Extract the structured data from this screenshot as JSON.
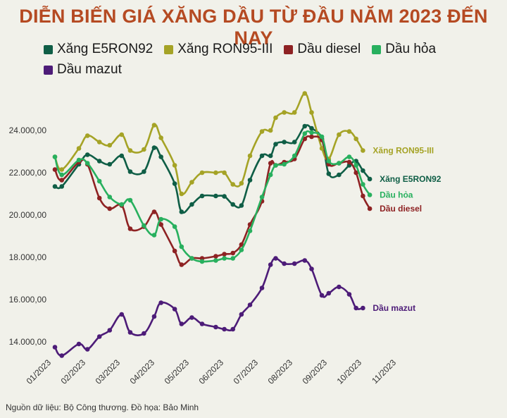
{
  "header": {
    "title": "DIỄN BIẾN GIÁ XĂNG DẦU TỪ ĐẦU NĂM 2023 ĐẾN NAY"
  },
  "footer": {
    "source": "Nguồn dữ liệu: Bộ Công thương. Đồ họa: Bảo Minh"
  },
  "chart_data": {
    "type": "line",
    "title": "DIỄN BIẾN GIÁ XĂNG DẦU TỪ ĐẦU NĂM 2023 ĐẾN NAY",
    "xlabel": "",
    "ylabel": "",
    "x_tick_labels": [
      "01/2023",
      "02/2023",
      "03/2023",
      "04/2023",
      "05/2023",
      "06/2023",
      "07/2023",
      "08/2023",
      "09/2023",
      "10/2023",
      "11/2023"
    ],
    "y_ticks": [
      "14.000,00",
      "16.000,00",
      "18.000,00",
      "20.000,00",
      "22.000,00",
      "24.000,00"
    ],
    "ylim": [
      13000,
      26000
    ],
    "grid": false,
    "legend_position": "top",
    "x": [
      0.0,
      0.2,
      0.7,
      0.95,
      1.3,
      1.6,
      1.95,
      2.2,
      2.6,
      2.9,
      3.1,
      3.5,
      3.7,
      4.0,
      4.3,
      4.7,
      4.95,
      5.2,
      5.45,
      5.7,
      6.05,
      6.3,
      6.45,
      6.7,
      7.0,
      7.3,
      7.5,
      7.8,
      8.0,
      8.3,
      8.6,
      8.8,
      9.0,
      9.2,
      9.5,
      9.7,
      9.9,
      10.2,
      10.45,
      10.75
    ],
    "series": [
      {
        "name": "Xăng E5RON92",
        "color": "#0f5e46",
        "end_label": "Xăng E5RON92",
        "values": [
          21350,
          21350,
          22400,
          22850,
          22550,
          22400,
          22800,
          22050,
          22050,
          23180,
          22750,
          21480,
          20150,
          20500,
          20900,
          20900,
          20880,
          20500,
          20450,
          21650,
          22800,
          22800,
          23350,
          23450,
          23450,
          24200,
          24100,
          23600,
          21950,
          21900,
          22350,
          22550,
          22100,
          21700,
          null,
          null,
          null,
          null,
          null,
          null
        ]
      },
      {
        "name": "Xăng RON95-III",
        "color": "#a5a326",
        "end_label": "Xăng RON95-III",
        "values": [
          22750,
          22150,
          23150,
          23750,
          23450,
          23300,
          23800,
          23050,
          23100,
          24250,
          23650,
          22350,
          21000,
          21550,
          22000,
          22000,
          22000,
          21450,
          21500,
          22800,
          23950,
          24000,
          24600,
          24850,
          24850,
          25750,
          24850,
          23150,
          22650,
          23800,
          23950,
          23600,
          23050,
          null,
          null,
          null,
          null,
          null,
          null,
          null
        ]
      },
      {
        "name": "Dầu diesel",
        "color": "#8e2223",
        "end_label": "Dầu diesel",
        "values": [
          22150,
          21650,
          22500,
          22400,
          20800,
          20300,
          20450,
          19350,
          19450,
          20150,
          19550,
          18300,
          17650,
          17950,
          17950,
          18050,
          18150,
          18200,
          18600,
          19550,
          20650,
          22450,
          22350,
          22500,
          22650,
          23600,
          23700,
          23550,
          22400,
          22450,
          22500,
          22000,
          20900,
          20300,
          null,
          null,
          null,
          null,
          null,
          null
        ]
      },
      {
        "name": "Dầu hỏa",
        "color": "#28b05e",
        "end_label": "Dầu hỏa",
        "values": [
          22750,
          21900,
          22600,
          22450,
          21600,
          20850,
          20500,
          20700,
          19500,
          19050,
          19800,
          19450,
          18500,
          17950,
          17800,
          17850,
          17950,
          17950,
          18350,
          19250,
          20850,
          21900,
          22350,
          22400,
          22800,
          23850,
          23900,
          23700,
          22550,
          22450,
          22750,
          22350,
          21450,
          20950,
          null,
          null,
          null,
          null,
          null,
          null
        ]
      },
      {
        "name": "Dầu mazut",
        "color": "#4d1c78",
        "end_label": "Dầu mazut",
        "values": [
          13750,
          13350,
          13900,
          13650,
          14250,
          14550,
          15300,
          14450,
          14400,
          15200,
          15850,
          15550,
          14850,
          15150,
          14850,
          14700,
          14600,
          14600,
          15300,
          15750,
          16550,
          17650,
          17950,
          17700,
          17700,
          17850,
          17450,
          16200,
          16300,
          16600,
          16250,
          15600,
          15600,
          null,
          null,
          null,
          null,
          null,
          null,
          null
        ]
      }
    ]
  }
}
